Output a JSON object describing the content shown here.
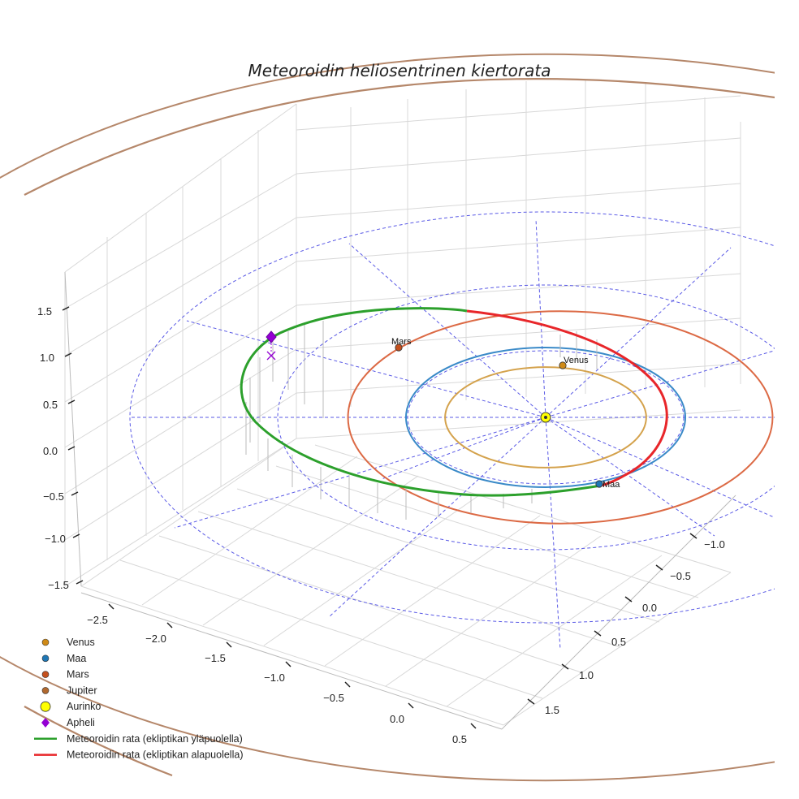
{
  "chart_data": {
    "type": "3d-orbit",
    "title": "Meteoroidin heliosentrinen kiertorata",
    "x_ticks": [
      "−2.5",
      "−2.0",
      "−1.5",
      "−1.0",
      "−0.5",
      "0.0",
      "0.5"
    ],
    "y_ticks": [
      "−1.0",
      "−0.5",
      "0.0",
      "0.5",
      "1.0",
      "1.5"
    ],
    "z_ticks": [
      "1.5",
      "1.0",
      "0.5",
      "0.0",
      "−0.5",
      "−1.0",
      "−1.5"
    ],
    "xlim": [
      -2.6,
      0.6
    ],
    "ylim": [
      -1.2,
      1.8
    ],
    "zlim": [
      -1.6,
      1.8
    ],
    "orbits_au": [
      {
        "name": "Venus",
        "radius": 0.72,
        "color": "#d4a24c"
      },
      {
        "name": "Maa",
        "radius": 1.0,
        "color": "#3a8ac8"
      },
      {
        "name": "Mars",
        "radius": 1.52,
        "color": "#dc6a45"
      },
      {
        "name": "Jupiter",
        "radius": 5.2,
        "color": "#b5876a"
      }
    ],
    "planets": [
      {
        "name": "Venus",
        "label": "Venus",
        "color": "#cf8a17"
      },
      {
        "name": "Maa",
        "label": "Maa",
        "color": "#1f77b4"
      },
      {
        "name": "Mars",
        "label": "Mars",
        "color": "#c4501d"
      }
    ],
    "sun": {
      "name": "Aurinko",
      "color": "#ffff00"
    },
    "meteoroid": {
      "above_color": "#2ca02c",
      "below_color": "#e8262a",
      "aphelion_distance_au": 2.0,
      "perihelion_distance_au": 0.93,
      "inclination_note": "ekliptikan ylä- ja alapuolella"
    },
    "aphelion_marker": {
      "name": "Apheli",
      "color": "#9400d3"
    }
  },
  "legend": [
    {
      "label": "Venus",
      "kind": "dot",
      "color": "#cf8a17"
    },
    {
      "label": "Maa",
      "kind": "dot",
      "color": "#1f77b4"
    },
    {
      "label": "Mars",
      "kind": "dot",
      "color": "#c4501d"
    },
    {
      "label": "Jupiter",
      "kind": "dot",
      "color": "#b0682e"
    },
    {
      "label": "Aurinko",
      "kind": "sun",
      "color": "#ffff00"
    },
    {
      "label": "Apheli",
      "kind": "diamond",
      "color": "#9400d3"
    },
    {
      "label": "Meteoroidin rata (ekliptikan yläpuolella)",
      "kind": "line",
      "color": "#2ca02c"
    },
    {
      "label": "Meteoroidin rata (ekliptikan alapuolella)",
      "kind": "line",
      "color": "#e8262a"
    }
  ]
}
